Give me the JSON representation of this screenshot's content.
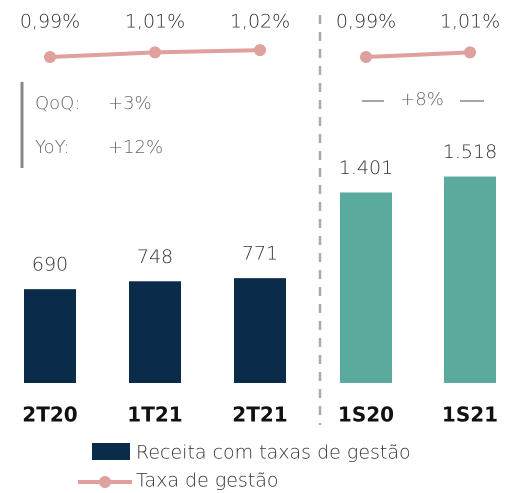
{
  "chart_data": [
    {
      "type": "bar",
      "categories": [
        "2T20",
        "1T21",
        "2T21"
      ],
      "series": [
        {
          "name": "Receita com taxas de gestão",
          "type": "bar",
          "color": "#0b2b4a",
          "values": [
            690,
            748,
            771
          ]
        },
        {
          "name": "Taxa de gestão",
          "type": "line",
          "color": "#dfa19d",
          "values": [
            0.99,
            1.01,
            1.02
          ],
          "value_labels": [
            "0,99%",
            "1,01%",
            "1,02%"
          ]
        }
      ],
      "annotations": [
        "QoQ:",
        "+3%",
        "YoY:",
        "+12%"
      ]
    },
    {
      "type": "bar",
      "categories": [
        "1S20",
        "1S21"
      ],
      "series": [
        {
          "type": "bar",
          "color": "#5aab9e",
          "values": [
            1401,
            1518
          ],
          "value_labels": [
            "1.401",
            "1.518"
          ]
        },
        {
          "type": "line",
          "color": "#dfa19d",
          "values": [
            0.99,
            1.01
          ],
          "value_labels": [
            "0,99%",
            "1,01%"
          ]
        }
      ],
      "annotations": [
        "+8%"
      ]
    }
  ]
}
